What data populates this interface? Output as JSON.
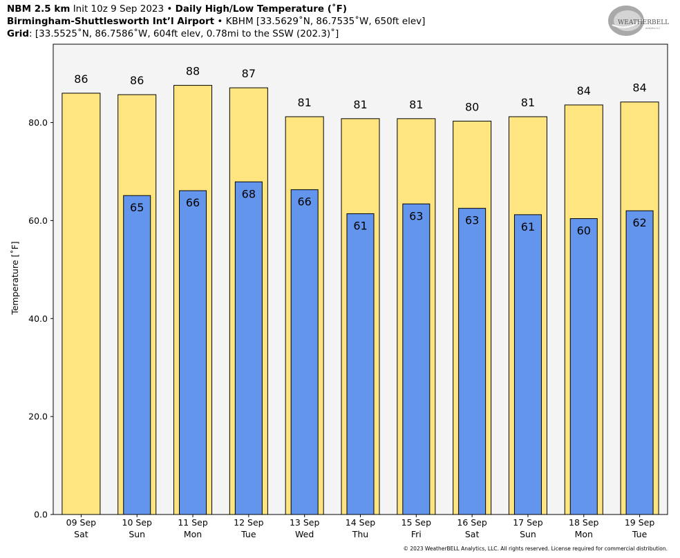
{
  "header": {
    "line1_model": "NBM 2.5 km",
    "line1_init": "Init 10z 9 Sep 2023",
    "bullet": "•",
    "line1_product": "Daily High/Low Temperature (˚F)",
    "line2_station": "Birmingham-Shuttlesworth Int’l Airport",
    "line2_info": "KBHM [33.5629˚N, 86.7535˚W, 650ft elev]",
    "line3_label": "Grid",
    "line3_info": ": [33.5525˚N, 86.7586˚W, 604ft elev, 0.78mi to the SSW (202.3)˚]"
  },
  "logo": {
    "text_main": "WEATHERBELL",
    "text_sub": "Analytics LLC"
  },
  "footer": "© 2023 WeatherBELL Analytics, LLC. All rights reserved. License required for commercial distribution.",
  "colors": {
    "high": "#ffe57f",
    "low": "#6495ed",
    "plot_bg": "#f4f4f4",
    "edge": "#000000"
  },
  "chart_data": {
    "type": "bar",
    "ylabel": "Temperature [˚F]",
    "ylim": [
      0,
      96
    ],
    "yticks": [
      0,
      20,
      40,
      60,
      80
    ],
    "ytick_labels": [
      "0.0",
      "20.0",
      "40.0",
      "60.0",
      "80.0"
    ],
    "grid": false,
    "categories": [
      {
        "date": "09 Sep",
        "day": "Sat"
      },
      {
        "date": "10 Sep",
        "day": "Sun"
      },
      {
        "date": "11 Sep",
        "day": "Mon"
      },
      {
        "date": "12 Sep",
        "day": "Tue"
      },
      {
        "date": "13 Sep",
        "day": "Wed"
      },
      {
        "date": "14 Sep",
        "day": "Thu"
      },
      {
        "date": "15 Sep",
        "day": "Fri"
      },
      {
        "date": "16 Sep",
        "day": "Sat"
      },
      {
        "date": "17 Sep",
        "day": "Sun"
      },
      {
        "date": "18 Sep",
        "day": "Mon"
      },
      {
        "date": "19 Sep",
        "day": "Tue"
      }
    ],
    "series": [
      {
        "name": "High",
        "values": [
          86,
          85.7,
          87.6,
          87.1,
          81.2,
          80.8,
          80.8,
          80.3,
          81.2,
          83.6,
          84.2
        ],
        "labels": [
          "86",
          "86",
          "88",
          "87",
          "81",
          "81",
          "81",
          "80",
          "81",
          "84",
          "84"
        ]
      },
      {
        "name": "Low",
        "values": [
          null,
          65.1,
          66.1,
          67.9,
          66.3,
          61.4,
          63.4,
          62.5,
          61.2,
          60.4,
          62.0
        ],
        "labels": [
          null,
          "65",
          "66",
          "68",
          "66",
          "61",
          "63",
          "63",
          "61",
          "60",
          "62"
        ]
      }
    ]
  }
}
